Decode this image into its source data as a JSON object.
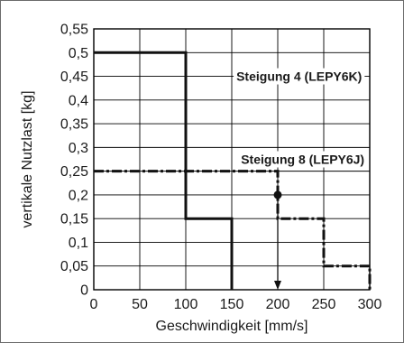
{
  "chart_data": {
    "type": "line",
    "title": "",
    "xlabel": "Geschwindigkeit [mm/s]",
    "ylabel": "vertikale Nutzlast [kg]",
    "xlim": [
      0,
      300
    ],
    "ylim": [
      0,
      0.55
    ],
    "x_ticks": [
      0,
      50,
      100,
      150,
      200,
      250,
      300
    ],
    "y_ticks": [
      0,
      0.05,
      0.1,
      0.15,
      0.2,
      0.25,
      0.3,
      0.35,
      0.4,
      0.45,
      0.5,
      0.55
    ],
    "x_tick_labels": [
      "0",
      "50",
      "100",
      "150",
      "200",
      "250",
      "300"
    ],
    "y_tick_labels": [
      "0",
      "0,05",
      "0,1",
      "0,15",
      "0,2",
      "0,25",
      "0,3",
      "0,35",
      "0,4",
      "0,45",
      "0,5",
      "0,55"
    ],
    "grid": true,
    "series": [
      {
        "name": "Steigung 4 (LEPY6K)",
        "style": "solid",
        "points": [
          [
            0,
            0.5
          ],
          [
            100,
            0.5
          ],
          [
            100,
            0.15
          ],
          [
            150,
            0.15
          ],
          [
            150,
            0
          ]
        ]
      },
      {
        "name": "Steigung 8 (LEPY6J)",
        "style": "dash-dot",
        "points": [
          [
            0,
            0.25
          ],
          [
            200,
            0.25
          ],
          [
            200,
            0.15
          ],
          [
            250,
            0.15
          ],
          [
            250,
            0.05
          ],
          [
            300,
            0.05
          ],
          [
            300,
            0
          ]
        ]
      }
    ],
    "annotations": [
      {
        "type": "marker",
        "x": 200,
        "y": 0.2
      },
      {
        "type": "arrow",
        "from": [
          200,
          0.2
        ],
        "to": [
          200,
          0
        ]
      }
    ],
    "colors": {
      "line": "#111111",
      "grid": "#000000",
      "text": "#1a1a1a"
    }
  }
}
